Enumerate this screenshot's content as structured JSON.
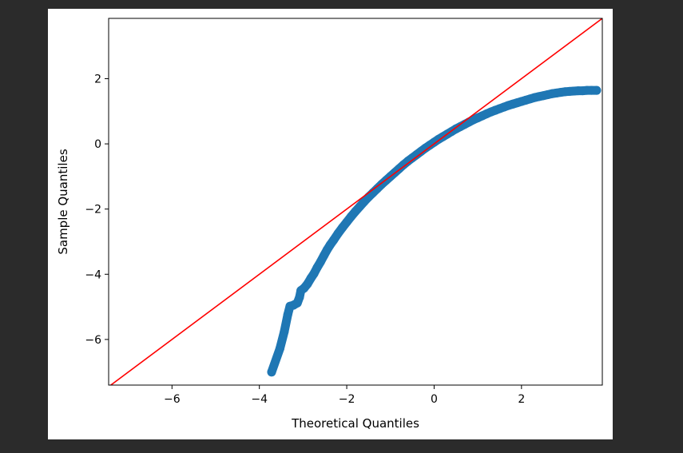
{
  "chart_data": {
    "type": "scatter",
    "xlabel": "Theoretical Quantiles",
    "ylabel": "Sample Quantiles",
    "xlim": [
      -7.45,
      3.85
    ],
    "ylim": [
      -7.4,
      3.85
    ],
    "xticks": [
      -6,
      -4,
      -2,
      0,
      2
    ],
    "yticks": [
      2,
      0,
      -2,
      -4,
      -6
    ],
    "xtick_labels": [
      "−6",
      "−4",
      "−2",
      "0",
      "2"
    ],
    "ytick_labels": [
      "2",
      "0",
      "−2",
      "−4",
      "−6"
    ],
    "grid": false,
    "colors": {
      "points": "#1f77b4",
      "reference_line": "#ff0000",
      "frame": "#000000"
    },
    "reference_line": {
      "slope": 1,
      "intercept": 0
    },
    "points": [
      [
        -3.72,
        -7.0
      ],
      [
        -3.53,
        -6.28
      ],
      [
        -3.43,
        -5.76
      ],
      [
        -3.35,
        -5.24
      ],
      [
        -3.3,
        -4.98
      ],
      [
        -3.22,
        -4.95
      ],
      [
        -3.13,
        -4.88
      ],
      [
        -3.08,
        -4.7
      ],
      [
        -3.05,
        -4.5
      ],
      [
        -2.98,
        -4.43
      ],
      [
        -2.9,
        -4.3
      ],
      [
        -2.82,
        -4.12
      ],
      [
        -2.75,
        -3.98
      ],
      [
        -2.68,
        -3.8
      ],
      [
        -2.6,
        -3.62
      ],
      [
        -2.52,
        -3.42
      ],
      [
        -2.45,
        -3.25
      ],
      [
        -2.38,
        -3.1
      ],
      [
        -2.3,
        -2.95
      ],
      [
        -2.2,
        -2.75
      ],
      [
        -2.1,
        -2.57
      ],
      [
        -2.0,
        -2.4
      ],
      [
        -1.9,
        -2.23
      ],
      [
        -1.8,
        -2.07
      ],
      [
        -1.7,
        -1.92
      ],
      [
        -1.6,
        -1.77
      ],
      [
        -1.5,
        -1.63
      ],
      [
        -1.4,
        -1.5
      ],
      [
        -1.3,
        -1.37
      ],
      [
        -1.2,
        -1.24
      ],
      [
        -1.1,
        -1.12
      ],
      [
        -1.0,
        -1.0
      ],
      [
        -0.9,
        -0.88
      ],
      [
        -0.8,
        -0.76
      ],
      [
        -0.7,
        -0.64
      ],
      [
        -0.6,
        -0.53
      ],
      [
        -0.5,
        -0.43
      ],
      [
        -0.4,
        -0.33
      ],
      [
        -0.3,
        -0.23
      ],
      [
        -0.2,
        -0.13
      ],
      [
        -0.1,
        -0.04
      ],
      [
        0.0,
        0.05
      ],
      [
        0.1,
        0.14
      ],
      [
        0.2,
        0.22
      ],
      [
        0.3,
        0.3
      ],
      [
        0.4,
        0.38
      ],
      [
        0.5,
        0.46
      ],
      [
        0.6,
        0.53
      ],
      [
        0.7,
        0.6
      ],
      [
        0.8,
        0.67
      ],
      [
        0.9,
        0.74
      ],
      [
        1.0,
        0.8
      ],
      [
        1.1,
        0.86
      ],
      [
        1.2,
        0.92
      ],
      [
        1.3,
        0.98
      ],
      [
        1.4,
        1.03
      ],
      [
        1.5,
        1.08
      ],
      [
        1.6,
        1.13
      ],
      [
        1.7,
        1.18
      ],
      [
        1.8,
        1.22
      ],
      [
        1.9,
        1.26
      ],
      [
        2.0,
        1.3
      ],
      [
        2.1,
        1.34
      ],
      [
        2.2,
        1.38
      ],
      [
        2.3,
        1.42
      ],
      [
        2.4,
        1.45
      ],
      [
        2.5,
        1.48
      ],
      [
        2.6,
        1.51
      ],
      [
        2.7,
        1.54
      ],
      [
        2.8,
        1.56
      ],
      [
        2.9,
        1.58
      ],
      [
        3.0,
        1.6
      ],
      [
        3.1,
        1.61
      ],
      [
        3.2,
        1.62
      ],
      [
        3.3,
        1.63
      ],
      [
        3.4,
        1.63
      ],
      [
        3.5,
        1.64
      ],
      [
        3.6,
        1.64
      ],
      [
        3.72,
        1.64
      ]
    ]
  }
}
